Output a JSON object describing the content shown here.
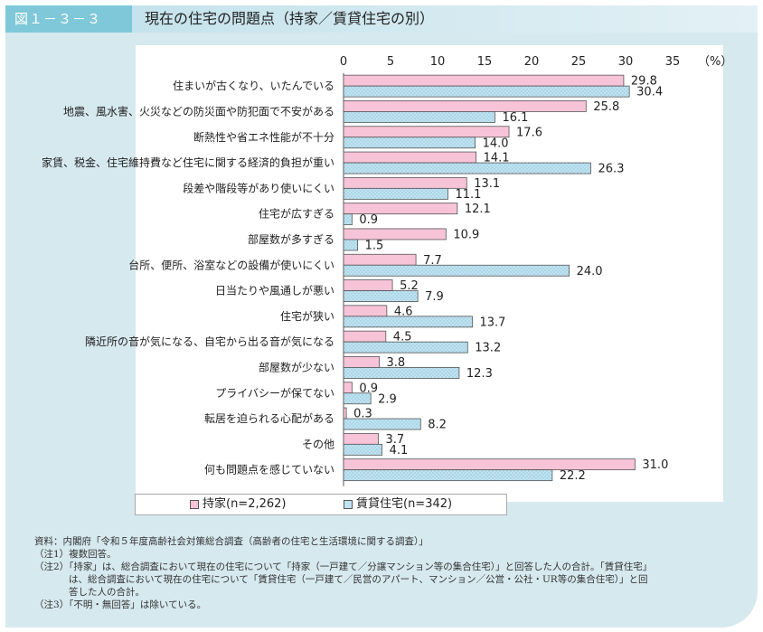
{
  "header": {
    "figure_label": "図１－３－３",
    "title": "現在の住宅の問題点（持家／賃貸住宅の別）"
  },
  "chart_data": {
    "type": "bar",
    "orientation": "horizontal",
    "title": "現在の住宅の問題点（持家／賃貸住宅の別）",
    "unit_label": "（%）",
    "xlim": [
      0,
      35
    ],
    "ticks": [
      0,
      5,
      10,
      15,
      20,
      25,
      30,
      35
    ],
    "categories": [
      "住まいが古くなり、いたんでいる",
      "地震、風水害、火災などの防災面や防犯面で不安がある",
      "断熱性や省エネ性能が不十分",
      "家賃、税金、住宅維持費など住宅に関する経済的負担が重い",
      "段差や階段等があり使いにくい",
      "住宅が広すぎる",
      "部屋数が多すぎる",
      "台所、便所、浴室などの設備が使いにくい",
      "日当たりや風通しが悪い",
      "住宅が狭い",
      "隣近所の音が気になる、自宅から出る音が気になる",
      "部屋数が少ない",
      "プライバシーが保てない",
      "転居を迫られる心配がある",
      "その他",
      "何も問題点を感じていない"
    ],
    "series": [
      {
        "name": "持家(n=2,262)",
        "color": "#f7c3d7",
        "values": [
          29.8,
          25.8,
          17.6,
          14.1,
          13.1,
          12.1,
          10.9,
          7.7,
          5.2,
          4.6,
          4.5,
          3.8,
          0.9,
          0.3,
          3.7,
          31.0
        ]
      },
      {
        "name": "賃貸住宅(n=342)",
        "color": "#bfe3f1",
        "values": [
          30.4,
          16.1,
          14.0,
          26.3,
          11.1,
          0.9,
          1.5,
          24.0,
          7.9,
          13.7,
          13.2,
          12.3,
          2.9,
          8.2,
          4.1,
          22.2
        ]
      }
    ],
    "legend": [
      "持家(n=2,262)",
      "賃貸住宅(n=342)"
    ]
  },
  "notes": [
    "資料：内閣府「令和５年度高齢社会対策総合調査（高齢者の住宅と生活環境に関する調査）」",
    "（注1）複数回答。",
    "（注2）「持家」は、総合調査において現在の住宅について「持家（一戸建て／分譲マンション等の集合住宅）」と回答した人の合計。「賃貸住宅」",
    "は、総合調査において現在の住宅について「賃貸住宅（一戸建て／民営のアパート、マンション／公営・公社・UR等の集合住宅）」と回",
    "答した人の合計。",
    "（注3）「不明・無回答」は除いている。"
  ]
}
